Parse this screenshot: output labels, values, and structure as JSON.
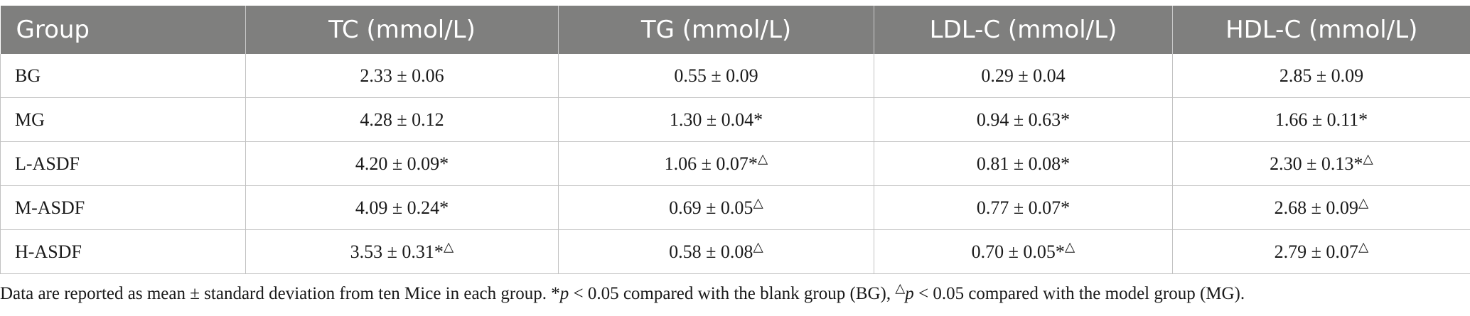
{
  "table": {
    "headers": [
      "Group",
      "TC (mmol/L)",
      "TG (mmol/L)",
      "LDL-C (mmol/L)",
      "HDL-C (mmol/L)"
    ],
    "rows": [
      [
        "BG",
        "2.33 ± 0.06",
        "0.55 ± 0.09",
        "0.29 ± 0.04",
        "2.85 ± 0.09"
      ],
      [
        "MG",
        "4.28 ± 0.12",
        "1.30 ± 0.04*",
        "0.94 ± 0.63*",
        "1.66 ± 0.11*"
      ],
      [
        "L-ASDF",
        "4.20 ± 0.09*",
        "1.06 ± 0.07*△",
        "0.81 ± 0.08*",
        "2.30 ± 0.13*△"
      ],
      [
        "M-ASDF",
        "4.09 ± 0.24*",
        "0.69 ± 0.05△",
        "0.77 ± 0.07*",
        "2.68 ± 0.09△"
      ],
      [
        "H-ASDF",
        "3.53 ± 0.31*△",
        "0.58 ± 0.08△",
        "0.70 ± 0.05*△",
        "2.79 ± 0.07△"
      ]
    ]
  },
  "footnote": {
    "part1": "Data are reported as mean ± standard deviation from ten Mice in each group. *",
    "p1": "p",
    "part2": " < 0.05 compared with the blank group (BG), ",
    "triangle": "△",
    "p2": "p",
    "part3": " < 0.05 compared with the model group (MG)."
  }
}
